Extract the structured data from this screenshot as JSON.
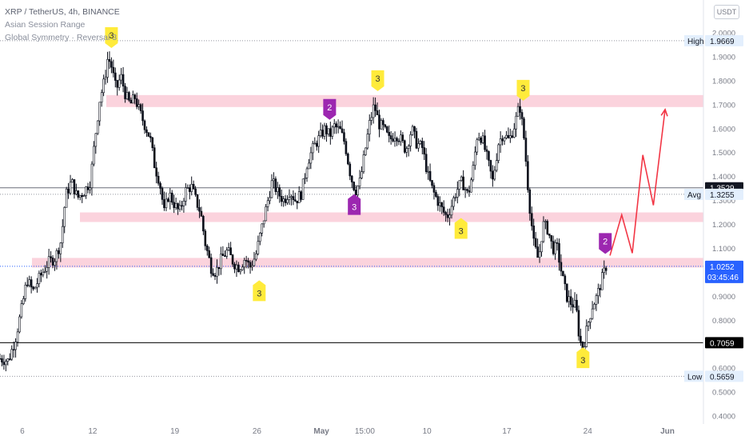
{
  "symbol_info": {
    "line1": "XRP / TetherUS, 4h, BINANCE",
    "line2": "Asian Session Range",
    "line3": "Global Symmetry · Reversal 3"
  },
  "currency_badge": "USDT",
  "colors": {
    "up": "#0b0f1a",
    "down": "#0b0f1a",
    "zone": "#f9c4d2",
    "projection": "#f23645",
    "marker_yellow": "#ffeb3b",
    "marker_purple": "#9c27b0",
    "axis_text": "#787b86",
    "label_blue_bg": "#e3effd",
    "label_dark_bg": "#131722"
  },
  "chart_data": {
    "type": "candlestick",
    "title": "XRP / TetherUS, 4h, BINANCE",
    "y_axis": {
      "ticks": [
        "2.0000",
        "1.9000",
        "1.8000",
        "1.7000",
        "1.6000",
        "1.5000",
        "1.4000",
        "1.3000",
        "1.2000",
        "1.1000",
        "1.0000",
        "0.9000",
        "0.8000",
        "0.7000",
        "0.6000",
        "0.5000",
        "0.4000"
      ],
      "range": [
        0.4,
        2.0
      ],
      "scale": "linear"
    },
    "x_axis": {
      "ticks": [
        {
          "label": "6",
          "day": 6
        },
        {
          "label": "12",
          "day": 12
        },
        {
          "label": "19",
          "day": 19
        },
        {
          "label": "26",
          "day": 26
        },
        {
          "label": "May",
          "day": 31.5
        },
        {
          "label": "15:00",
          "day": 35.2
        },
        {
          "label": "10",
          "day": 40.5
        },
        {
          "label": "17",
          "day": 47.3
        },
        {
          "label": "24",
          "day": 54.2
        },
        {
          "label": "Jun",
          "day": 61
        }
      ],
      "range": [
        4.1,
        61
      ]
    },
    "price_path": [
      [
        4.1,
        0.64
      ],
      [
        4.8,
        0.63
      ],
      [
        5.4,
        0.72
      ],
      [
        6.0,
        0.86
      ],
      [
        6.4,
        0.97
      ],
      [
        6.9,
        0.92
      ],
      [
        7.5,
        0.98
      ],
      [
        8.2,
        1.04
      ],
      [
        8.8,
        1.06
      ],
      [
        9.3,
        1.13
      ],
      [
        9.7,
        1.32
      ],
      [
        10.2,
        1.38
      ],
      [
        10.7,
        1.31
      ],
      [
        11.3,
        1.34
      ],
      [
        11.8,
        1.38
      ],
      [
        12.2,
        1.56
      ],
      [
        12.6,
        1.72
      ],
      [
        13.0,
        1.8
      ],
      [
        13.3,
        1.9
      ],
      [
        13.6,
        1.86
      ],
      [
        14.0,
        1.76
      ],
      [
        14.4,
        1.82
      ],
      [
        14.8,
        1.74
      ],
      [
        15.2,
        1.7
      ],
      [
        15.6,
        1.73
      ],
      [
        16.0,
        1.67
      ],
      [
        16.4,
        1.62
      ],
      [
        16.9,
        1.56
      ],
      [
        17.3,
        1.44
      ],
      [
        17.7,
        1.38
      ],
      [
        18.1,
        1.25
      ],
      [
        18.5,
        1.33
      ],
      [
        19.0,
        1.28
      ],
      [
        19.4,
        1.25
      ],
      [
        19.9,
        1.34
      ],
      [
        20.4,
        1.36
      ],
      [
        20.8,
        1.3
      ],
      [
        21.2,
        1.25
      ],
      [
        21.6,
        1.12
      ],
      [
        22.1,
        1.02
      ],
      [
        22.5,
        1.0
      ],
      [
        23.0,
        1.06
      ],
      [
        23.5,
        1.09
      ],
      [
        24.0,
        1.04
      ],
      [
        24.5,
        1.02
      ],
      [
        25.0,
        1.06
      ],
      [
        25.4,
        1.02
      ],
      [
        25.9,
        1.07
      ],
      [
        26.3,
        1.16
      ],
      [
        26.8,
        1.27
      ],
      [
        27.3,
        1.38
      ],
      [
        27.8,
        1.33
      ],
      [
        28.3,
        1.3
      ],
      [
        28.8,
        1.34
      ],
      [
        29.3,
        1.3
      ],
      [
        29.8,
        1.33
      ],
      [
        30.3,
        1.46
      ],
      [
        30.8,
        1.52
      ],
      [
        31.3,
        1.56
      ],
      [
        31.8,
        1.6
      ],
      [
        32.2,
        1.57
      ],
      [
        32.6,
        1.61
      ],
      [
        33.1,
        1.59
      ],
      [
        33.5,
        1.54
      ],
      [
        34.0,
        1.4
      ],
      [
        34.4,
        1.34
      ],
      [
        34.8,
        1.38
      ],
      [
        35.2,
        1.5
      ],
      [
        35.6,
        1.62
      ],
      [
        36.0,
        1.7
      ],
      [
        36.4,
        1.62
      ],
      [
        36.8,
        1.6
      ],
      [
        37.3,
        1.55
      ],
      [
        37.8,
        1.58
      ],
      [
        38.2,
        1.56
      ],
      [
        38.7,
        1.51
      ],
      [
        39.2,
        1.6
      ],
      [
        39.6,
        1.54
      ],
      [
        40.1,
        1.52
      ],
      [
        40.6,
        1.4
      ],
      [
        41.0,
        1.34
      ],
      [
        41.4,
        1.3
      ],
      [
        41.8,
        1.26
      ],
      [
        42.2,
        1.23
      ],
      [
        42.6,
        1.28
      ],
      [
        43.0,
        1.34
      ],
      [
        43.5,
        1.38
      ],
      [
        44.0,
        1.32
      ],
      [
        44.4,
        1.42
      ],
      [
        44.8,
        1.58
      ],
      [
        45.2,
        1.56
      ],
      [
        45.7,
        1.46
      ],
      [
        46.1,
        1.38
      ],
      [
        46.6,
        1.54
      ],
      [
        47.0,
        1.58
      ],
      [
        47.5,
        1.55
      ],
      [
        48.0,
        1.62
      ],
      [
        48.4,
        1.7
      ],
      [
        48.8,
        1.55
      ],
      [
        49.2,
        1.3
      ],
      [
        49.6,
        1.12
      ],
      [
        50.0,
        1.05
      ],
      [
        50.4,
        1.2
      ],
      [
        50.8,
        1.18
      ],
      [
        51.2,
        1.1
      ],
      [
        51.6,
        1.1
      ],
      [
        52.0,
        0.99
      ],
      [
        52.4,
        0.9
      ],
      [
        52.8,
        0.87
      ],
      [
        53.2,
        0.86
      ],
      [
        53.5,
        0.72
      ],
      [
        53.8,
        0.68
      ],
      [
        54.2,
        0.78
      ],
      [
        54.6,
        0.86
      ],
      [
        55.0,
        0.9
      ],
      [
        55.4,
        0.97
      ],
      [
        55.8,
        1.03
      ]
    ],
    "zones": [
      {
        "from": 1.69,
        "to": 1.74,
        "label": ""
      },
      {
        "from": 1.21,
        "to": 1.25,
        "label": ""
      },
      {
        "from": 1.02,
        "to": 1.06,
        "label": ""
      }
    ],
    "horizontal_levels": [
      {
        "value": 1.3529,
        "label": "1.3529",
        "style": "solid-gray"
      },
      {
        "value": 1.3255,
        "label": "1.3255",
        "tag": "Avg",
        "style": "dotted-gray"
      },
      {
        "value": 1.0252,
        "label": "1.0252",
        "sub": "03:45:46",
        "style": "dotted-blue"
      },
      {
        "value": 0.7059,
        "label": "0.7059",
        "style": "solid-black"
      },
      {
        "value": 1.9669,
        "label": "1.9669",
        "tag": "High",
        "style": "dotted-gray"
      },
      {
        "value": 0.5659,
        "label": "0.5659",
        "tag": "Low",
        "style": "dotted-gray"
      }
    ],
    "markers": [
      {
        "day": 13.6,
        "price": 1.93,
        "text": "3",
        "color": "yellow",
        "dir": "down"
      },
      {
        "day": 26.2,
        "price": 0.96,
        "text": "3",
        "color": "yellow",
        "dir": "up"
      },
      {
        "day": 32.2,
        "price": 1.63,
        "text": "2",
        "color": "purple",
        "dir": "down"
      },
      {
        "day": 34.3,
        "price": 1.32,
        "text": "3",
        "color": "purple",
        "dir": "up"
      },
      {
        "day": 36.3,
        "price": 1.75,
        "text": "3",
        "color": "yellow",
        "dir": "down"
      },
      {
        "day": 43.4,
        "price": 1.22,
        "text": "3",
        "color": "yellow",
        "dir": "up"
      },
      {
        "day": 48.7,
        "price": 1.71,
        "text": "3",
        "color": "yellow",
        "dir": "down"
      },
      {
        "day": 53.8,
        "price": 0.68,
        "text": "3",
        "color": "yellow",
        "dir": "up"
      },
      {
        "day": 55.7,
        "price": 1.07,
        "text": "2",
        "color": "purple",
        "dir": "down"
      }
    ],
    "projection_path": [
      [
        56.1,
        1.07
      ],
      [
        57.1,
        1.24
      ],
      [
        58.0,
        1.08
      ],
      [
        58.9,
        1.49
      ],
      [
        59.8,
        1.28
      ],
      [
        60.8,
        1.68
      ]
    ]
  }
}
